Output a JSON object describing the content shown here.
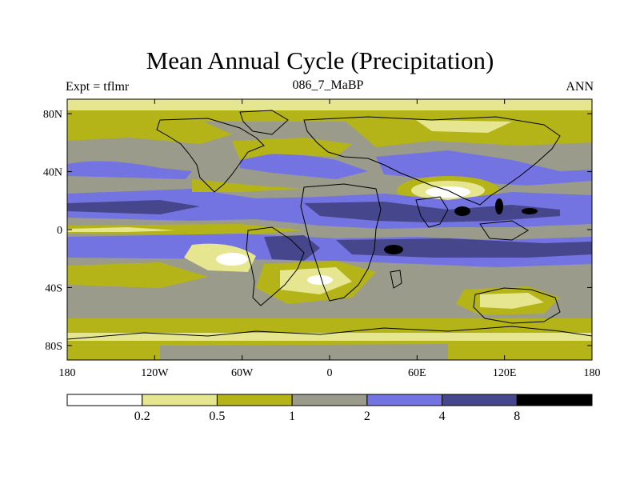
{
  "chart_data": {
    "type": "heatmap",
    "title": "Mean Annual Cycle (Precipitation)",
    "subtitle_left": "Expt = tflmr",
    "subtitle_center": "086_7_MaBP",
    "subtitle_right": "ANN",
    "x_ticks": [
      "180",
      "120W",
      "60W",
      "0",
      "60E",
      "120E",
      "180"
    ],
    "x_tick_values": [
      -180,
      -120,
      -60,
      0,
      60,
      120,
      180
    ],
    "y_ticks": [
      "80N",
      "40N",
      "0",
      "40S",
      "80S"
    ],
    "y_tick_values": [
      80,
      40,
      0,
      -40,
      -80
    ],
    "xlim": [
      -180,
      180
    ],
    "ylim": [
      -90,
      90
    ],
    "legend": {
      "levels": [
        "0.2",
        "0.5",
        "1",
        "2",
        "4",
        "8"
      ],
      "colors": [
        "#ffffff",
        "#e6e690",
        "#b4b419",
        "#9b9b8c",
        "#7373e1",
        "#46468c",
        "#000000"
      ]
    }
  }
}
